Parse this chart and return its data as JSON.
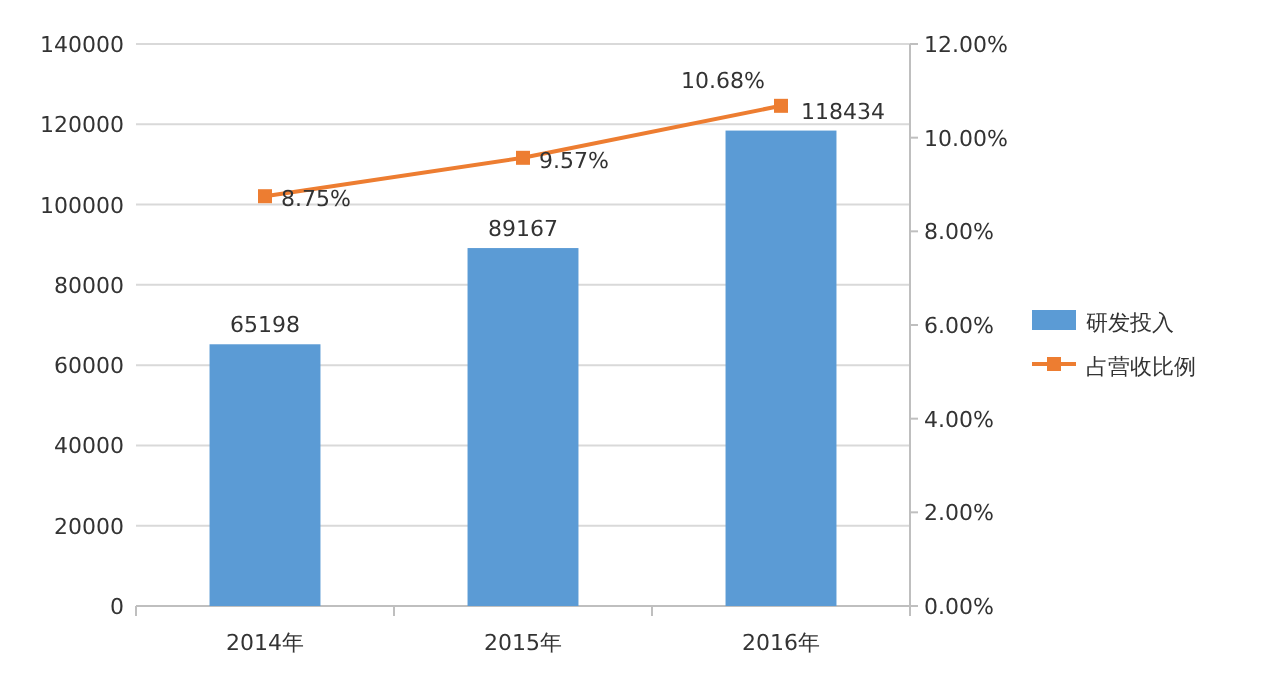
{
  "chart_data": {
    "type": "bar",
    "categories": [
      "2014年",
      "2015年",
      "2016年"
    ],
    "series": [
      {
        "name": "研发投入",
        "color": "#5b9bd5",
        "values": [
          65198,
          89167,
          118434
        ],
        "value_labels": [
          "65198",
          "89167",
          "118434"
        ]
      },
      {
        "name": "占营收比例",
        "type": "line",
        "axis": "y2",
        "color": "#ed7d31",
        "marker": "square",
        "values": [
          8.75,
          9.57,
          10.68
        ],
        "value_labels": [
          "8.75%",
          "9.57%",
          "10.68%"
        ]
      }
    ],
    "ylim": [
      0,
      140000
    ],
    "yticks": [
      0,
      20000,
      40000,
      60000,
      80000,
      100000,
      120000,
      140000
    ],
    "y2lim": [
      0,
      12
    ],
    "y2ticks": [
      {
        "value": 0,
        "label": "0.00%"
      },
      {
        "value": 2,
        "label": "2.00%"
      },
      {
        "value": 4,
        "label": "4.00%"
      },
      {
        "value": 6,
        "label": "6.00%"
      },
      {
        "value": 8,
        "label": "8.00%"
      },
      {
        "value": 10,
        "label": "10.00%"
      },
      {
        "value": 12,
        "label": "12.00%"
      }
    ],
    "grid": "y",
    "legend": "right"
  }
}
